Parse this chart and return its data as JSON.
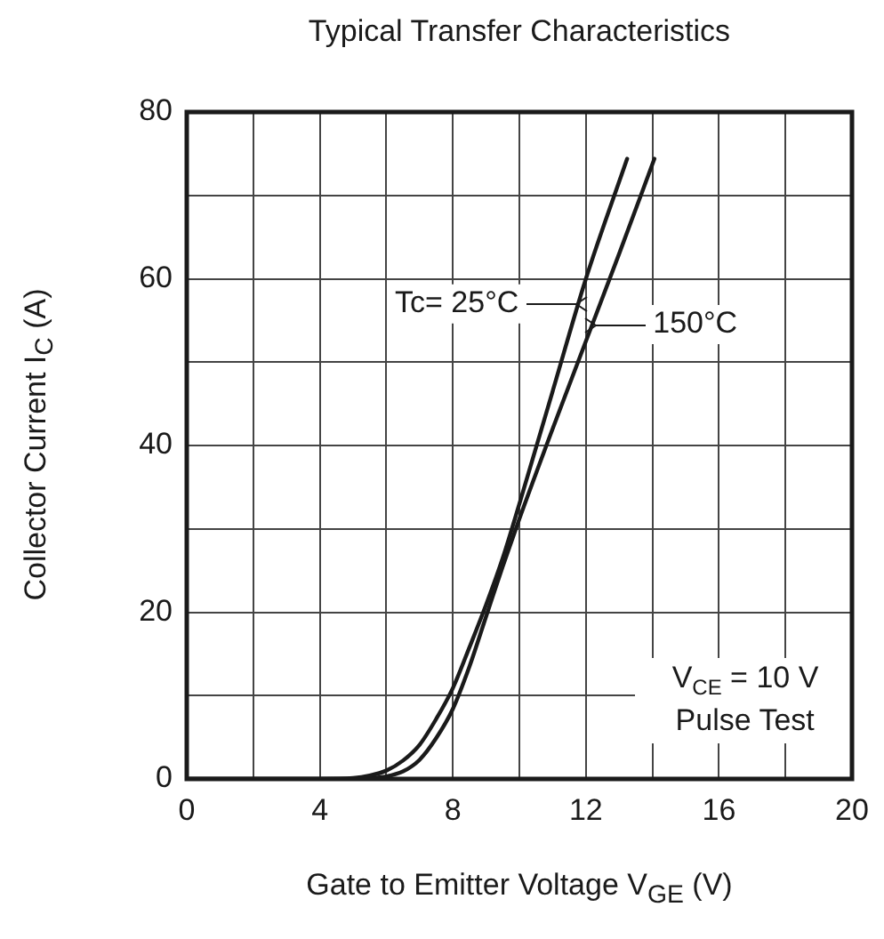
{
  "chart_data": {
    "type": "line",
    "title": "Typical Transfer Characteristics",
    "xlabel": "Gate to Emitter Voltage  V$_{GE}$ (V)",
    "ylabel": "Collector Current  I$_{C}$  (A)",
    "xlim": [
      0,
      20
    ],
    "xticks": [
      0,
      {
        "value": 2,
        "label": null
      },
      4,
      {
        "value": 6,
        "label": null
      },
      8,
      {
        "value": 10,
        "label": null
      },
      12,
      {
        "value": 14,
        "label": null
      },
      16,
      {
        "value": 18,
        "label": null
      },
      20
    ],
    "ylim": [
      0,
      80
    ],
    "yticks": [
      0,
      {
        "value": 10,
        "label": null
      },
      20,
      {
        "value": 30,
        "label": null
      },
      40,
      {
        "value": 50,
        "label": null
      },
      60,
      {
        "value": 70,
        "label": null
      },
      80
    ],
    "grid": true,
    "legend": false,
    "marker": "none",
    "line_style": "solid",
    "series": [
      {
        "color": "#1a1a1a",
        "x": [
          0,
          4,
          5,
          5.5,
          6,
          6.5,
          7,
          7.5,
          8,
          8.5,
          9,
          9.5,
          10,
          11,
          12,
          13.24
        ],
        "values": [
          0,
          0,
          0.1,
          0.4,
          1,
          2.2,
          4.1,
          7.2,
          10.9,
          15.8,
          20.9,
          26.5,
          33,
          46.5,
          60,
          74.4
        ]
      },
      {
        "color": "#1a1a1a",
        "x": [
          0,
          4,
          5,
          5.5,
          6,
          6.5,
          7,
          7.5,
          8,
          8.5,
          9,
          9.5,
          10,
          11,
          12,
          13,
          14.06
        ],
        "values": [
          0,
          0,
          0,
          0.1,
          0.3,
          0.9,
          2.3,
          4.9,
          8.4,
          13.5,
          19.5,
          25.5,
          31.2,
          42,
          52.5,
          63,
          74.4
        ]
      }
    ],
    "annotations": [
      {
        "text": "Tc= 25°C",
        "x": 11.8,
        "y": 57
      },
      {
        "text": "150°C",
        "x": 12.2,
        "y": 54.5
      },
      "V$_{CE}$ = 10 V",
      "Pulse Test"
    ]
  }
}
